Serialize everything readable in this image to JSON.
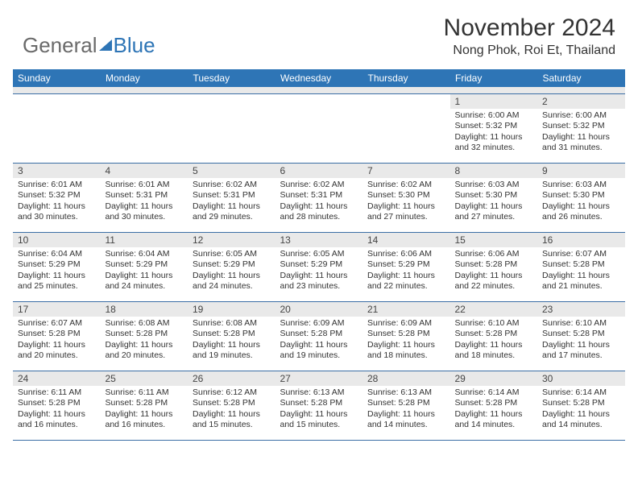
{
  "logo": {
    "text1": "General",
    "text2": "Blue"
  },
  "title": "November 2024",
  "location": "Nong Phok, Roi Et, Thailand",
  "colors": {
    "header_bg": "#2e75b6",
    "header_fg": "#ffffff",
    "daynum_bg": "#e9e9e9",
    "border": "#3b6ea5",
    "logo_gray": "#6a6a6a",
    "logo_blue": "#2e75b6"
  },
  "weekdays": [
    "Sunday",
    "Monday",
    "Tuesday",
    "Wednesday",
    "Thursday",
    "Friday",
    "Saturday"
  ],
  "weeks": [
    [
      null,
      null,
      null,
      null,
      null,
      {
        "n": "1",
        "sr": "6:00 AM",
        "ss": "5:32 PM",
        "dl": "11 hours and 32 minutes."
      },
      {
        "n": "2",
        "sr": "6:00 AM",
        "ss": "5:32 PM",
        "dl": "11 hours and 31 minutes."
      }
    ],
    [
      {
        "n": "3",
        "sr": "6:01 AM",
        "ss": "5:32 PM",
        "dl": "11 hours and 30 minutes."
      },
      {
        "n": "4",
        "sr": "6:01 AM",
        "ss": "5:31 PM",
        "dl": "11 hours and 30 minutes."
      },
      {
        "n": "5",
        "sr": "6:02 AM",
        "ss": "5:31 PM",
        "dl": "11 hours and 29 minutes."
      },
      {
        "n": "6",
        "sr": "6:02 AM",
        "ss": "5:31 PM",
        "dl": "11 hours and 28 minutes."
      },
      {
        "n": "7",
        "sr": "6:02 AM",
        "ss": "5:30 PM",
        "dl": "11 hours and 27 minutes."
      },
      {
        "n": "8",
        "sr": "6:03 AM",
        "ss": "5:30 PM",
        "dl": "11 hours and 27 minutes."
      },
      {
        "n": "9",
        "sr": "6:03 AM",
        "ss": "5:30 PM",
        "dl": "11 hours and 26 minutes."
      }
    ],
    [
      {
        "n": "10",
        "sr": "6:04 AM",
        "ss": "5:29 PM",
        "dl": "11 hours and 25 minutes."
      },
      {
        "n": "11",
        "sr": "6:04 AM",
        "ss": "5:29 PM",
        "dl": "11 hours and 24 minutes."
      },
      {
        "n": "12",
        "sr": "6:05 AM",
        "ss": "5:29 PM",
        "dl": "11 hours and 24 minutes."
      },
      {
        "n": "13",
        "sr": "6:05 AM",
        "ss": "5:29 PM",
        "dl": "11 hours and 23 minutes."
      },
      {
        "n": "14",
        "sr": "6:06 AM",
        "ss": "5:29 PM",
        "dl": "11 hours and 22 minutes."
      },
      {
        "n": "15",
        "sr": "6:06 AM",
        "ss": "5:28 PM",
        "dl": "11 hours and 22 minutes."
      },
      {
        "n": "16",
        "sr": "6:07 AM",
        "ss": "5:28 PM",
        "dl": "11 hours and 21 minutes."
      }
    ],
    [
      {
        "n": "17",
        "sr": "6:07 AM",
        "ss": "5:28 PM",
        "dl": "11 hours and 20 minutes."
      },
      {
        "n": "18",
        "sr": "6:08 AM",
        "ss": "5:28 PM",
        "dl": "11 hours and 20 minutes."
      },
      {
        "n": "19",
        "sr": "6:08 AM",
        "ss": "5:28 PM",
        "dl": "11 hours and 19 minutes."
      },
      {
        "n": "20",
        "sr": "6:09 AM",
        "ss": "5:28 PM",
        "dl": "11 hours and 19 minutes."
      },
      {
        "n": "21",
        "sr": "6:09 AM",
        "ss": "5:28 PM",
        "dl": "11 hours and 18 minutes."
      },
      {
        "n": "22",
        "sr": "6:10 AM",
        "ss": "5:28 PM",
        "dl": "11 hours and 18 minutes."
      },
      {
        "n": "23",
        "sr": "6:10 AM",
        "ss": "5:28 PM",
        "dl": "11 hours and 17 minutes."
      }
    ],
    [
      {
        "n": "24",
        "sr": "6:11 AM",
        "ss": "5:28 PM",
        "dl": "11 hours and 16 minutes."
      },
      {
        "n": "25",
        "sr": "6:11 AM",
        "ss": "5:28 PM",
        "dl": "11 hours and 16 minutes."
      },
      {
        "n": "26",
        "sr": "6:12 AM",
        "ss": "5:28 PM",
        "dl": "11 hours and 15 minutes."
      },
      {
        "n": "27",
        "sr": "6:13 AM",
        "ss": "5:28 PM",
        "dl": "11 hours and 15 minutes."
      },
      {
        "n": "28",
        "sr": "6:13 AM",
        "ss": "5:28 PM",
        "dl": "11 hours and 14 minutes."
      },
      {
        "n": "29",
        "sr": "6:14 AM",
        "ss": "5:28 PM",
        "dl": "11 hours and 14 minutes."
      },
      {
        "n": "30",
        "sr": "6:14 AM",
        "ss": "5:28 PM",
        "dl": "11 hours and 14 minutes."
      }
    ]
  ],
  "labels": {
    "sunrise": "Sunrise:",
    "sunset": "Sunset:",
    "daylight": "Daylight:"
  }
}
